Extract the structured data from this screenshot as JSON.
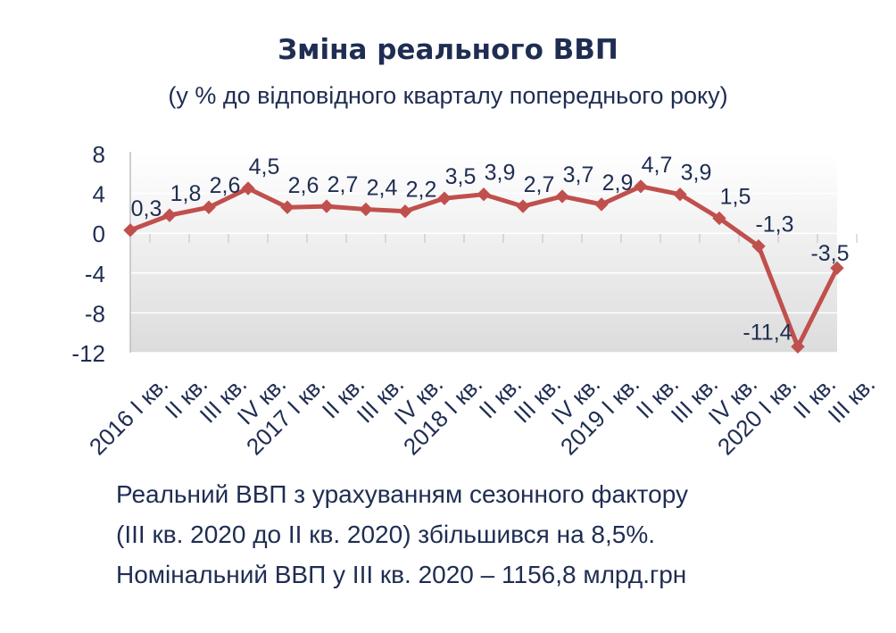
{
  "chart_data": {
    "type": "line",
    "title": "Зміна реального ВВП",
    "subtitle": "(у % до відповідного кварталу попереднього року)",
    "categories": [
      "2016 I кв.",
      "II кв.",
      "III кв.",
      "IV кв.",
      "2017 I кв.",
      "II кв.",
      "III кв.",
      "IV кв.",
      "2018 I кв.",
      "II кв.",
      "III кв.",
      "IV кв.",
      "2019 I кв.",
      "II кв.",
      "III кв.",
      "IV кв.",
      "2020 I кв.",
      "II кв.",
      "III кв."
    ],
    "values": [
      0.3,
      1.8,
      2.6,
      4.5,
      2.6,
      2.7,
      2.4,
      2.2,
      3.5,
      3.9,
      2.7,
      3.7,
      2.9,
      4.7,
      3.9,
      1.5,
      -1.3,
      -11.4,
      -3.5
    ],
    "labels": [
      "0,3",
      "1,8",
      "2,6",
      "4,5",
      "2,6",
      "2,7",
      "2,4",
      "2,2",
      "3,5",
      "3,9",
      "2,7",
      "3,7",
      "2,9",
      "4,7",
      "3,9",
      "1,5",
      "-1,3",
      "-11,4",
      "-3,5"
    ],
    "yticks": [
      "8",
      "4",
      "0",
      "-4",
      "-8",
      "-12"
    ],
    "ytick_values": [
      8,
      4,
      0,
      -4,
      -8,
      -12
    ],
    "ylim": [
      -12,
      8
    ],
    "line_color": "#c0504d"
  },
  "notes": {
    "line1": "Реальний ВВП з урахуванням сезонного фактору",
    "line2": "(ІІІ кв. 2020 до ІІ кв. 2020) збільшився на 8,5%.",
    "line3": "Номінальний ВВП у ІІІ кв. 2020 – 1156,8 млрд.грн"
  }
}
